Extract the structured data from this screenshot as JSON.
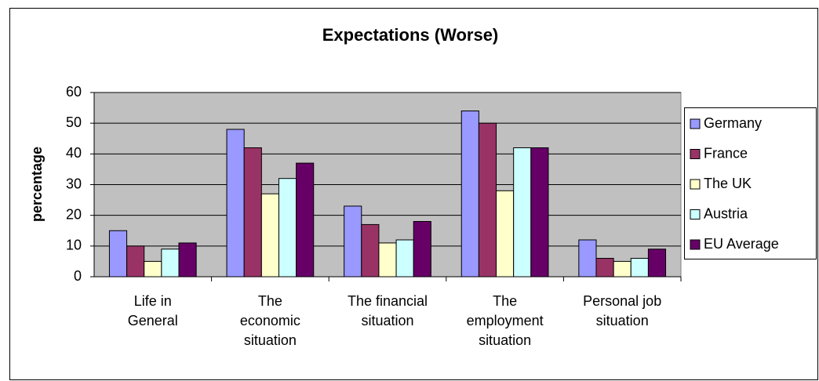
{
  "chart_data": {
    "type": "bar",
    "title": "Expectations (Worse)",
    "y_label": "percentage",
    "categories": [
      "Life in\nGeneral",
      "The\neconomic\nsituation",
      "The financial\nsituation",
      "The\nemployment\nsituation",
      "Personal job\nsituation"
    ],
    "series": [
      {
        "name": "Germany",
        "color": "#9999ff",
        "values": [
          15,
          48,
          23,
          54,
          12
        ]
      },
      {
        "name": "France",
        "color": "#993366",
        "values": [
          10,
          42,
          17,
          50,
          6
        ]
      },
      {
        "name": "The UK",
        "color": "#ffffcc",
        "values": [
          5,
          27,
          11,
          28,
          5
        ]
      },
      {
        "name": "Austria",
        "color": "#ccffff",
        "values": [
          9,
          32,
          12,
          42,
          6
        ]
      },
      {
        "name": "EU Average",
        "color": "#660066",
        "values": [
          11,
          37,
          18,
          42,
          9
        ]
      }
    ],
    "ylim": [
      0,
      60
    ],
    "yticks": [
      0,
      10,
      20,
      30,
      40,
      50,
      60
    ],
    "grid": true,
    "legend": "right"
  }
}
